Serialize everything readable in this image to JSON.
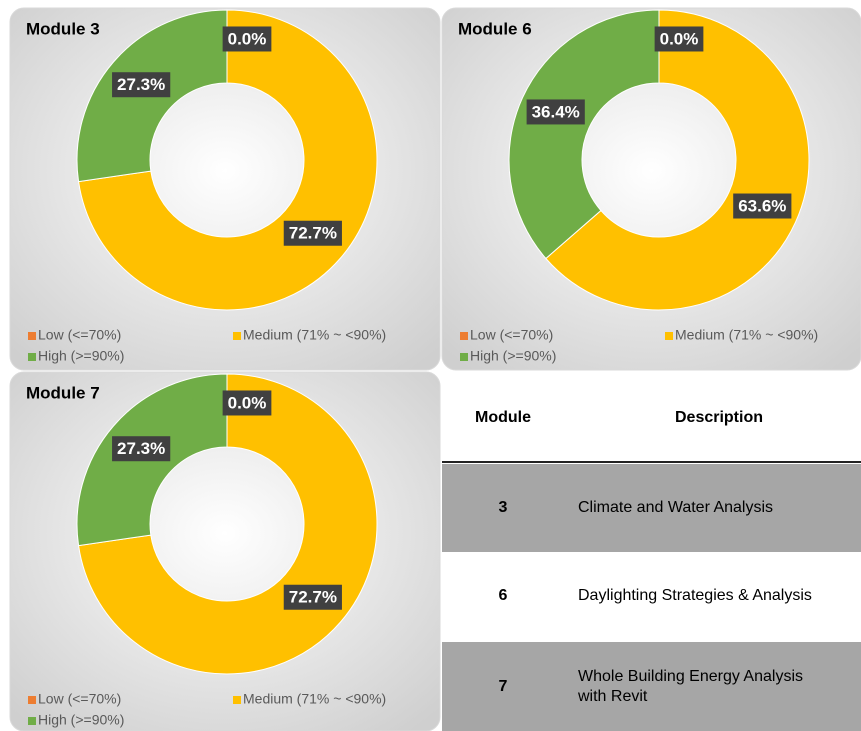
{
  "chart_data": [
    {
      "type": "donut",
      "title": "Module 3",
      "categories": [
        "Low (<=70%)",
        "Medium (71% ~ <90%)",
        "High (>=90%)"
      ],
      "values": [
        0.0,
        72.7,
        27.3
      ],
      "value_labels": [
        "0.0%",
        "72.7%",
        "27.3%"
      ],
      "colors": [
        "#ed7d31",
        "#ffc000",
        "#70ad47"
      ]
    },
    {
      "type": "donut",
      "title": "Module 6",
      "categories": [
        "Low (<=70%)",
        "Medium (71% ~ <90%)",
        "High (>=90%)"
      ],
      "values": [
        0.0,
        63.6,
        36.4
      ],
      "value_labels": [
        "0.0%",
        "63.6%",
        "36.4%"
      ],
      "colors": [
        "#ed7d31",
        "#ffc000",
        "#70ad47"
      ]
    },
    {
      "type": "donut",
      "title": "Module 7",
      "categories": [
        "Low (<=70%)",
        "Medium (71% ~ <90%)",
        "High (>=90%)"
      ],
      "values": [
        0.0,
        72.7,
        27.3
      ],
      "value_labels": [
        "0.0%",
        "72.7%",
        "27.3%"
      ],
      "colors": [
        "#ed7d31",
        "#ffc000",
        "#70ad47"
      ]
    }
  ],
  "table": {
    "header": [
      "Module",
      "Description"
    ],
    "rows": [
      [
        "3",
        "Climate and Water Analysis"
      ],
      [
        "6",
        "Daylighting Strategies & Analysis"
      ],
      [
        "7",
        "Whole Building Energy Analysis with Revit"
      ]
    ]
  }
}
